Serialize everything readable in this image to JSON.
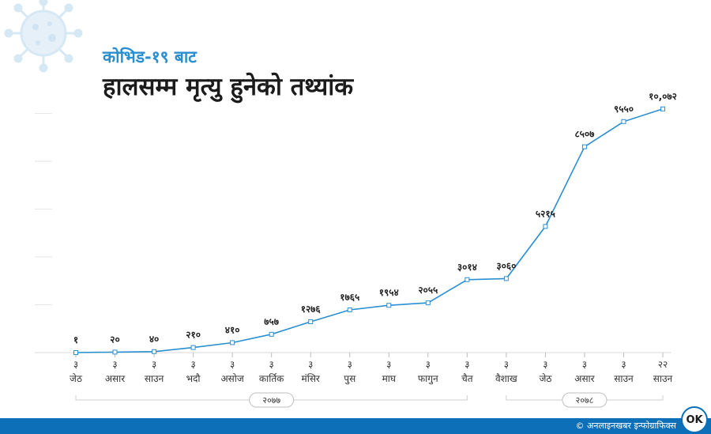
{
  "header": {
    "subtitle": "कोभिड-१९ बाट",
    "title": "हालसम्म मृत्यु हुनेको तथ्यांक"
  },
  "footer": {
    "credit": "© अनलाइनखबर इन्फोग्राफिक्स",
    "logo_text": "OK"
  },
  "colors": {
    "line": "#2a8fd1",
    "accent": "#0d6fb8",
    "grid": "#e6e6e6"
  },
  "chart_data": {
    "type": "line",
    "title": "",
    "xlabel": "",
    "ylabel": "",
    "grid": true,
    "ylim": [
      0,
      10000
    ],
    "categories": [
      {
        "day": "३",
        "month": "जेठ"
      },
      {
        "day": "३",
        "month": "असार"
      },
      {
        "day": "३",
        "month": "साउन"
      },
      {
        "day": "३",
        "month": "भदौ"
      },
      {
        "day": "३",
        "month": "असोज"
      },
      {
        "day": "३",
        "month": "कार्तिक"
      },
      {
        "day": "३",
        "month": "मंसिर"
      },
      {
        "day": "३",
        "month": "पुस"
      },
      {
        "day": "३",
        "month": "माघ"
      },
      {
        "day": "३",
        "month": "फागुन"
      },
      {
        "day": "३",
        "month": "चैत"
      },
      {
        "day": "३",
        "month": "वैशाख"
      },
      {
        "day": "३",
        "month": "जेठ"
      },
      {
        "day": "३",
        "month": "असार"
      },
      {
        "day": "३",
        "month": "साउन"
      },
      {
        "day": "२२",
        "month": "साउन"
      }
    ],
    "values": [
      1,
      20,
      40,
      210,
      410,
      757,
      1276,
      1765,
      1954,
      2055,
      3014,
      3060,
      5215,
      8507,
      9550,
      10072
    ],
    "value_labels": [
      "१",
      "२०",
      "४०",
      "२१०",
      "४१०",
      "७५७",
      "१२७६",
      "१७६५",
      "१९५४",
      "२०५५",
      "३०१४",
      "३०६०",
      "५२१५",
      "८५०७",
      "९५५०",
      "१०,०७२"
    ],
    "year_groups": [
      {
        "label": "२०७७",
        "from": 0,
        "to": 10
      },
      {
        "label": "२०७८",
        "from": 11,
        "to": 15
      }
    ]
  }
}
